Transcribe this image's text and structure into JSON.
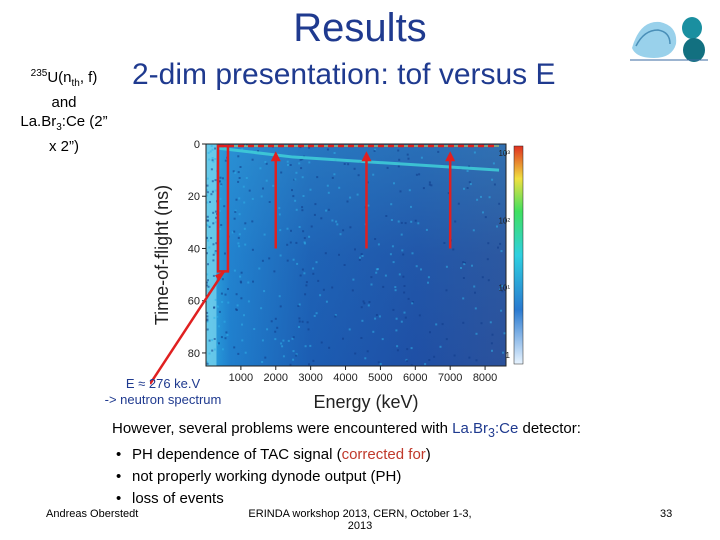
{
  "slide": {
    "title": "Results",
    "subtitle": "2-dim presentation: tof versus E",
    "side_label": {
      "sup": "235",
      "part1": "U(n",
      "sub1": "th",
      "part2": ", f)",
      "line2": "and",
      "part3": "La.Br",
      "sub3": "3",
      "part4": ":Ce (2”",
      "line4": "x 2”)"
    },
    "annotation_line1": "E ≈ 276 ke.V",
    "annotation_line2": "-> neutron spectrum",
    "intro_part1": "However, several problems were encountered with ",
    "intro_part2": "La.Br",
    "intro_sub": "3",
    "intro_part3": ":Ce",
    "intro_part4": " detector:",
    "bullets": {
      "b1_part1": "PH dependence of TAC signal (",
      "b1_highlight": "corrected for",
      "b1_part2": ")",
      "b2": "not properly working dynode output (PH)",
      "b3": "loss of events"
    },
    "bullet_symbol": "•",
    "footer_left": "Andreas Oberstedt",
    "footer_center": "ERINDA workshop 2013, CERN, October 1-3, 2013",
    "page_number": "33"
  },
  "chart_data": {
    "type": "heatmap",
    "xlabel": "Energy (keV)",
    "ylabel": "Time-of-flight (ns)",
    "xticks": [
      "1000",
      "2000",
      "3000",
      "4000",
      "5000",
      "6000",
      "7000",
      "8000"
    ],
    "yticks": [
      "0",
      "20",
      "40",
      "60",
      "80"
    ],
    "xlim": [
      0,
      8600
    ],
    "ylim": [
      0,
      85
    ],
    "y_inverted": true,
    "colorbar_ticks": [
      "10³",
      "10²",
      "10¹",
      "1"
    ],
    "colorscale": "log",
    "gamma_line_tof": 0,
    "highlight_box": {
      "e_min": 0,
      "e_max": 400,
      "tof_min": 0,
      "tof_max": 48
    },
    "arrows_at_energy": [
      400,
      2000,
      4600,
      7000
    ],
    "colors": {
      "low": "#1b3fa0",
      "mid": "#3fb4e0",
      "high": "#f0e040",
      "accent": "#e02020"
    }
  }
}
